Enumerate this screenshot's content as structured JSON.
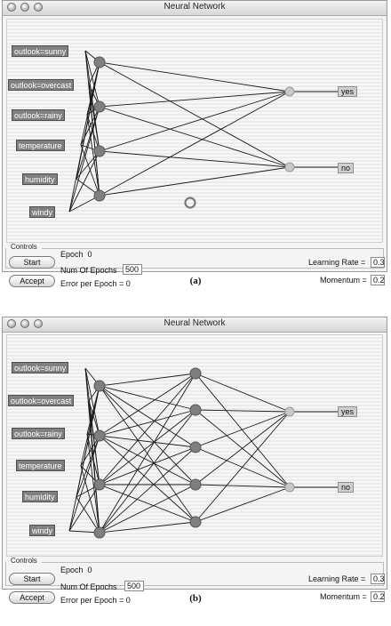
{
  "window_title": "Neural Network",
  "inputs": [
    "outlook=sunny",
    "outlook=overcast",
    "outlook=rainy",
    "temperature",
    "humidity",
    "windy"
  ],
  "outputs": [
    "yes",
    "no"
  ],
  "controls": {
    "legend": "Controls",
    "start_label": "Start",
    "accept_label": "Accept",
    "epoch_label": "Epoch",
    "epoch_value": "0",
    "num_epochs_label": "Num Of Epochs",
    "num_epochs_value": "500",
    "error_label": "Error per Epoch = 0",
    "learning_rate_label": "Learning Rate =",
    "learning_rate_value": "0.3",
    "momentum_label": "Momentum =",
    "momentum_value": "0.2"
  },
  "panel_a": {
    "caption": "(a)",
    "hidden_layers": [
      4
    ]
  },
  "panel_b": {
    "caption": "(b)",
    "hidden_layers": [
      4,
      5
    ]
  },
  "colors": {
    "node": "#7f7f7f",
    "output_node": "#c8c8c8",
    "edge": "#1a1a1a",
    "label_bg": "#808080"
  }
}
